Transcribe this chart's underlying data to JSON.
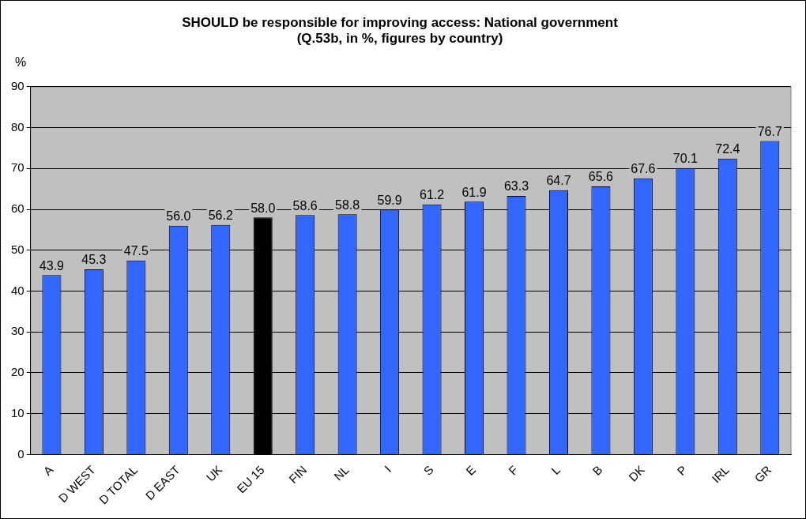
{
  "chart_data": {
    "type": "bar",
    "title": "SHOULD be responsible for improving access: National government",
    "subtitle": "(Q.53b, in %, figures by country)",
    "ylabel": "%",
    "categories": [
      "A",
      "D WEST",
      "D TOTAL",
      "D EAST",
      "UK",
      "EU 15",
      "FIN",
      "NL",
      "I",
      "S",
      "E",
      "F",
      "L",
      "B",
      "DK",
      "P",
      "IRL",
      "GR"
    ],
    "values": [
      43.9,
      45.3,
      47.5,
      56.0,
      56.2,
      58.0,
      58.6,
      58.8,
      59.9,
      61.2,
      61.9,
      63.3,
      64.7,
      65.6,
      67.6,
      70.1,
      72.4,
      76.7
    ],
    "colors": [
      "#3366ff",
      "#3366ff",
      "#3366ff",
      "#3366ff",
      "#3366ff",
      "#000000",
      "#3366ff",
      "#3366ff",
      "#3366ff",
      "#3366ff",
      "#3366ff",
      "#3366ff",
      "#3366ff",
      "#3366ff",
      "#3366ff",
      "#3366ff",
      "#3366ff",
      "#3366ff"
    ],
    "value_labels": [
      "43.9",
      "45.3",
      "47.5",
      "56.0",
      "56.2",
      "58.0",
      "58.6",
      "58.8",
      "59.9",
      "61.2",
      "61.9",
      "63.3",
      "64.7",
      "65.6",
      "67.6",
      "70.1",
      "72.4",
      "76.7"
    ],
    "ylim": [
      0,
      90
    ],
    "yticks": [
      0,
      10,
      20,
      30,
      40,
      50,
      60,
      70,
      80,
      90
    ],
    "grid": "y",
    "legend": false
  }
}
